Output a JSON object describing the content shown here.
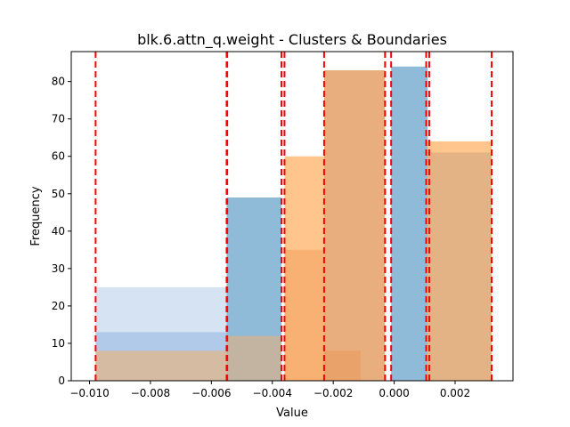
{
  "chart_data": {
    "type": "bar",
    "title": "blk.6.attn_q.weight - Clusters & Boundaries",
    "xlabel": "Value",
    "ylabel": "Frequency",
    "xlim": [
      -0.0106,
      0.0039
    ],
    "ylim": [
      0,
      88
    ],
    "x_ticks": [
      -0.01,
      -0.008,
      -0.006,
      -0.004,
      -0.002,
      0.0,
      0.002
    ],
    "x_tick_labels": [
      "−0.010",
      "−0.008",
      "−0.006",
      "−0.004",
      "−0.002",
      "0.000",
      "0.002"
    ],
    "y_ticks": [
      0,
      10,
      20,
      30,
      40,
      50,
      60,
      70,
      80
    ],
    "y_tick_labels": [
      "0",
      "10",
      "20",
      "30",
      "40",
      "50",
      "60",
      "70",
      "80"
    ],
    "grid": false,
    "legend": "none",
    "bars": [
      {
        "x0": -0.0098,
        "x1": -0.0055,
        "value": 25,
        "color": "#aec7e8",
        "alpha": 0.5
      },
      {
        "x0": -0.0098,
        "x1": -0.0055,
        "value": 13,
        "color": "#aec7e8",
        "alpha": 0.9
      },
      {
        "x0": -0.0098,
        "x1": -0.0055,
        "value": 8,
        "color": "#d9b894",
        "alpha": 0.85
      },
      {
        "x0": -0.0055,
        "x1": -0.0037,
        "value": 49,
        "color": "#1f77b4",
        "alpha": 0.5
      },
      {
        "x0": -0.0055,
        "x1": -0.0037,
        "value": 12,
        "color": "#c8b49a",
        "alpha": 0.9
      },
      {
        "x0": -0.0036,
        "x1": -0.0023,
        "value": 60,
        "color": "#ffbb78",
        "alpha": 0.85
      },
      {
        "x0": -0.0036,
        "x1": -0.0023,
        "value": 35,
        "color": "#f2a05c",
        "alpha": 0.55
      },
      {
        "x0": -0.0023,
        "x1": -0.0003,
        "value": 83,
        "color": "#e8ae7e",
        "alpha": 1.0
      },
      {
        "x0": -0.0023,
        "x1": -0.0011,
        "value": 8,
        "color": "#e89a5e",
        "alpha": 0.6
      },
      {
        "x0": -0.0001,
        "x1": 0.0011,
        "value": 84,
        "color": "#1f77b4",
        "alpha": 0.5
      },
      {
        "x0": 0.0011,
        "x1": 0.0032,
        "value": 64,
        "color": "#ffbb78",
        "alpha": 0.85
      },
      {
        "x0": 0.0011,
        "x1": 0.0032,
        "value": 61,
        "color": "#e0b085",
        "alpha": 0.9
      }
    ],
    "boundaries": [
      -0.0098,
      -0.0055,
      -0.00548,
      -0.0037,
      -0.0036,
      -0.0023,
      -0.0003,
      -0.0001,
      0.00105,
      0.00115,
      0.0032
    ],
    "boundary_color": "#ff0000"
  }
}
